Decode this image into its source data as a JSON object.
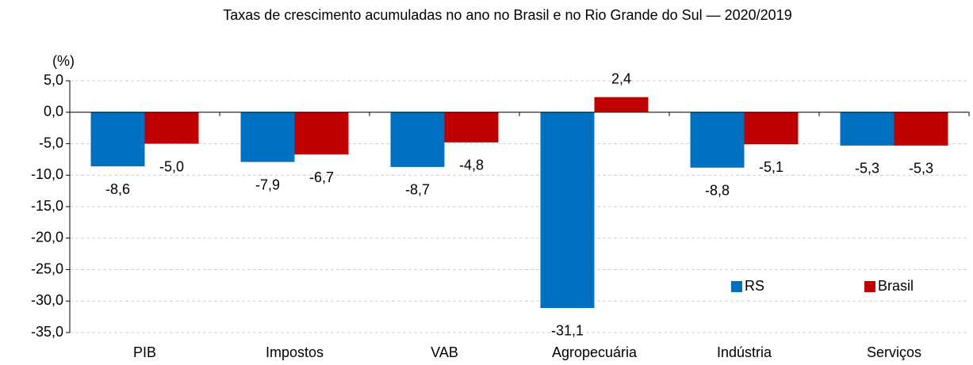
{
  "chart_data": {
    "type": "bar",
    "title": "Taxas de crescimento acumuladas no ano no Brasil e no Rio Grande do Sul — 2020/2019",
    "y_label": "(%)",
    "categories": [
      "PIB",
      "Impostos",
      "VAB",
      "Agropecuária",
      "Indústria",
      "Serviços"
    ],
    "series": [
      {
        "name": "RS",
        "color": "#0070c0",
        "values": [
          -8.6,
          -7.9,
          -8.7,
          -31.1,
          -8.8,
          -5.3
        ],
        "value_labels": [
          "-8,6",
          "-7,9",
          "-8,7",
          "-31,1",
          "-8,8",
          "-5,3"
        ]
      },
      {
        "name": "Brasil",
        "color": "#c00000",
        "values": [
          -5.0,
          -6.7,
          -4.8,
          2.4,
          -5.1,
          -5.3
        ],
        "value_labels": [
          "-5,0",
          "-6,7",
          "-4,8",
          "2,4",
          "-5,1",
          "-5,3"
        ]
      }
    ],
    "ylim": [
      -35,
      5
    ],
    "yticks": [
      {
        "value": -35,
        "label": "-35,0"
      },
      {
        "value": -30,
        "label": "-30,0"
      },
      {
        "value": -25,
        "label": "-25,0"
      },
      {
        "value": -20,
        "label": "-20,0"
      },
      {
        "value": -15,
        "label": "-15,0"
      },
      {
        "value": -10,
        "label": "-10,0"
      },
      {
        "value": -5,
        "label": "-5,0"
      },
      {
        "value": 0,
        "label": "0,0"
      },
      {
        "value": 5,
        "label": "5,0"
      }
    ],
    "grid": true,
    "legend": "lower right"
  }
}
